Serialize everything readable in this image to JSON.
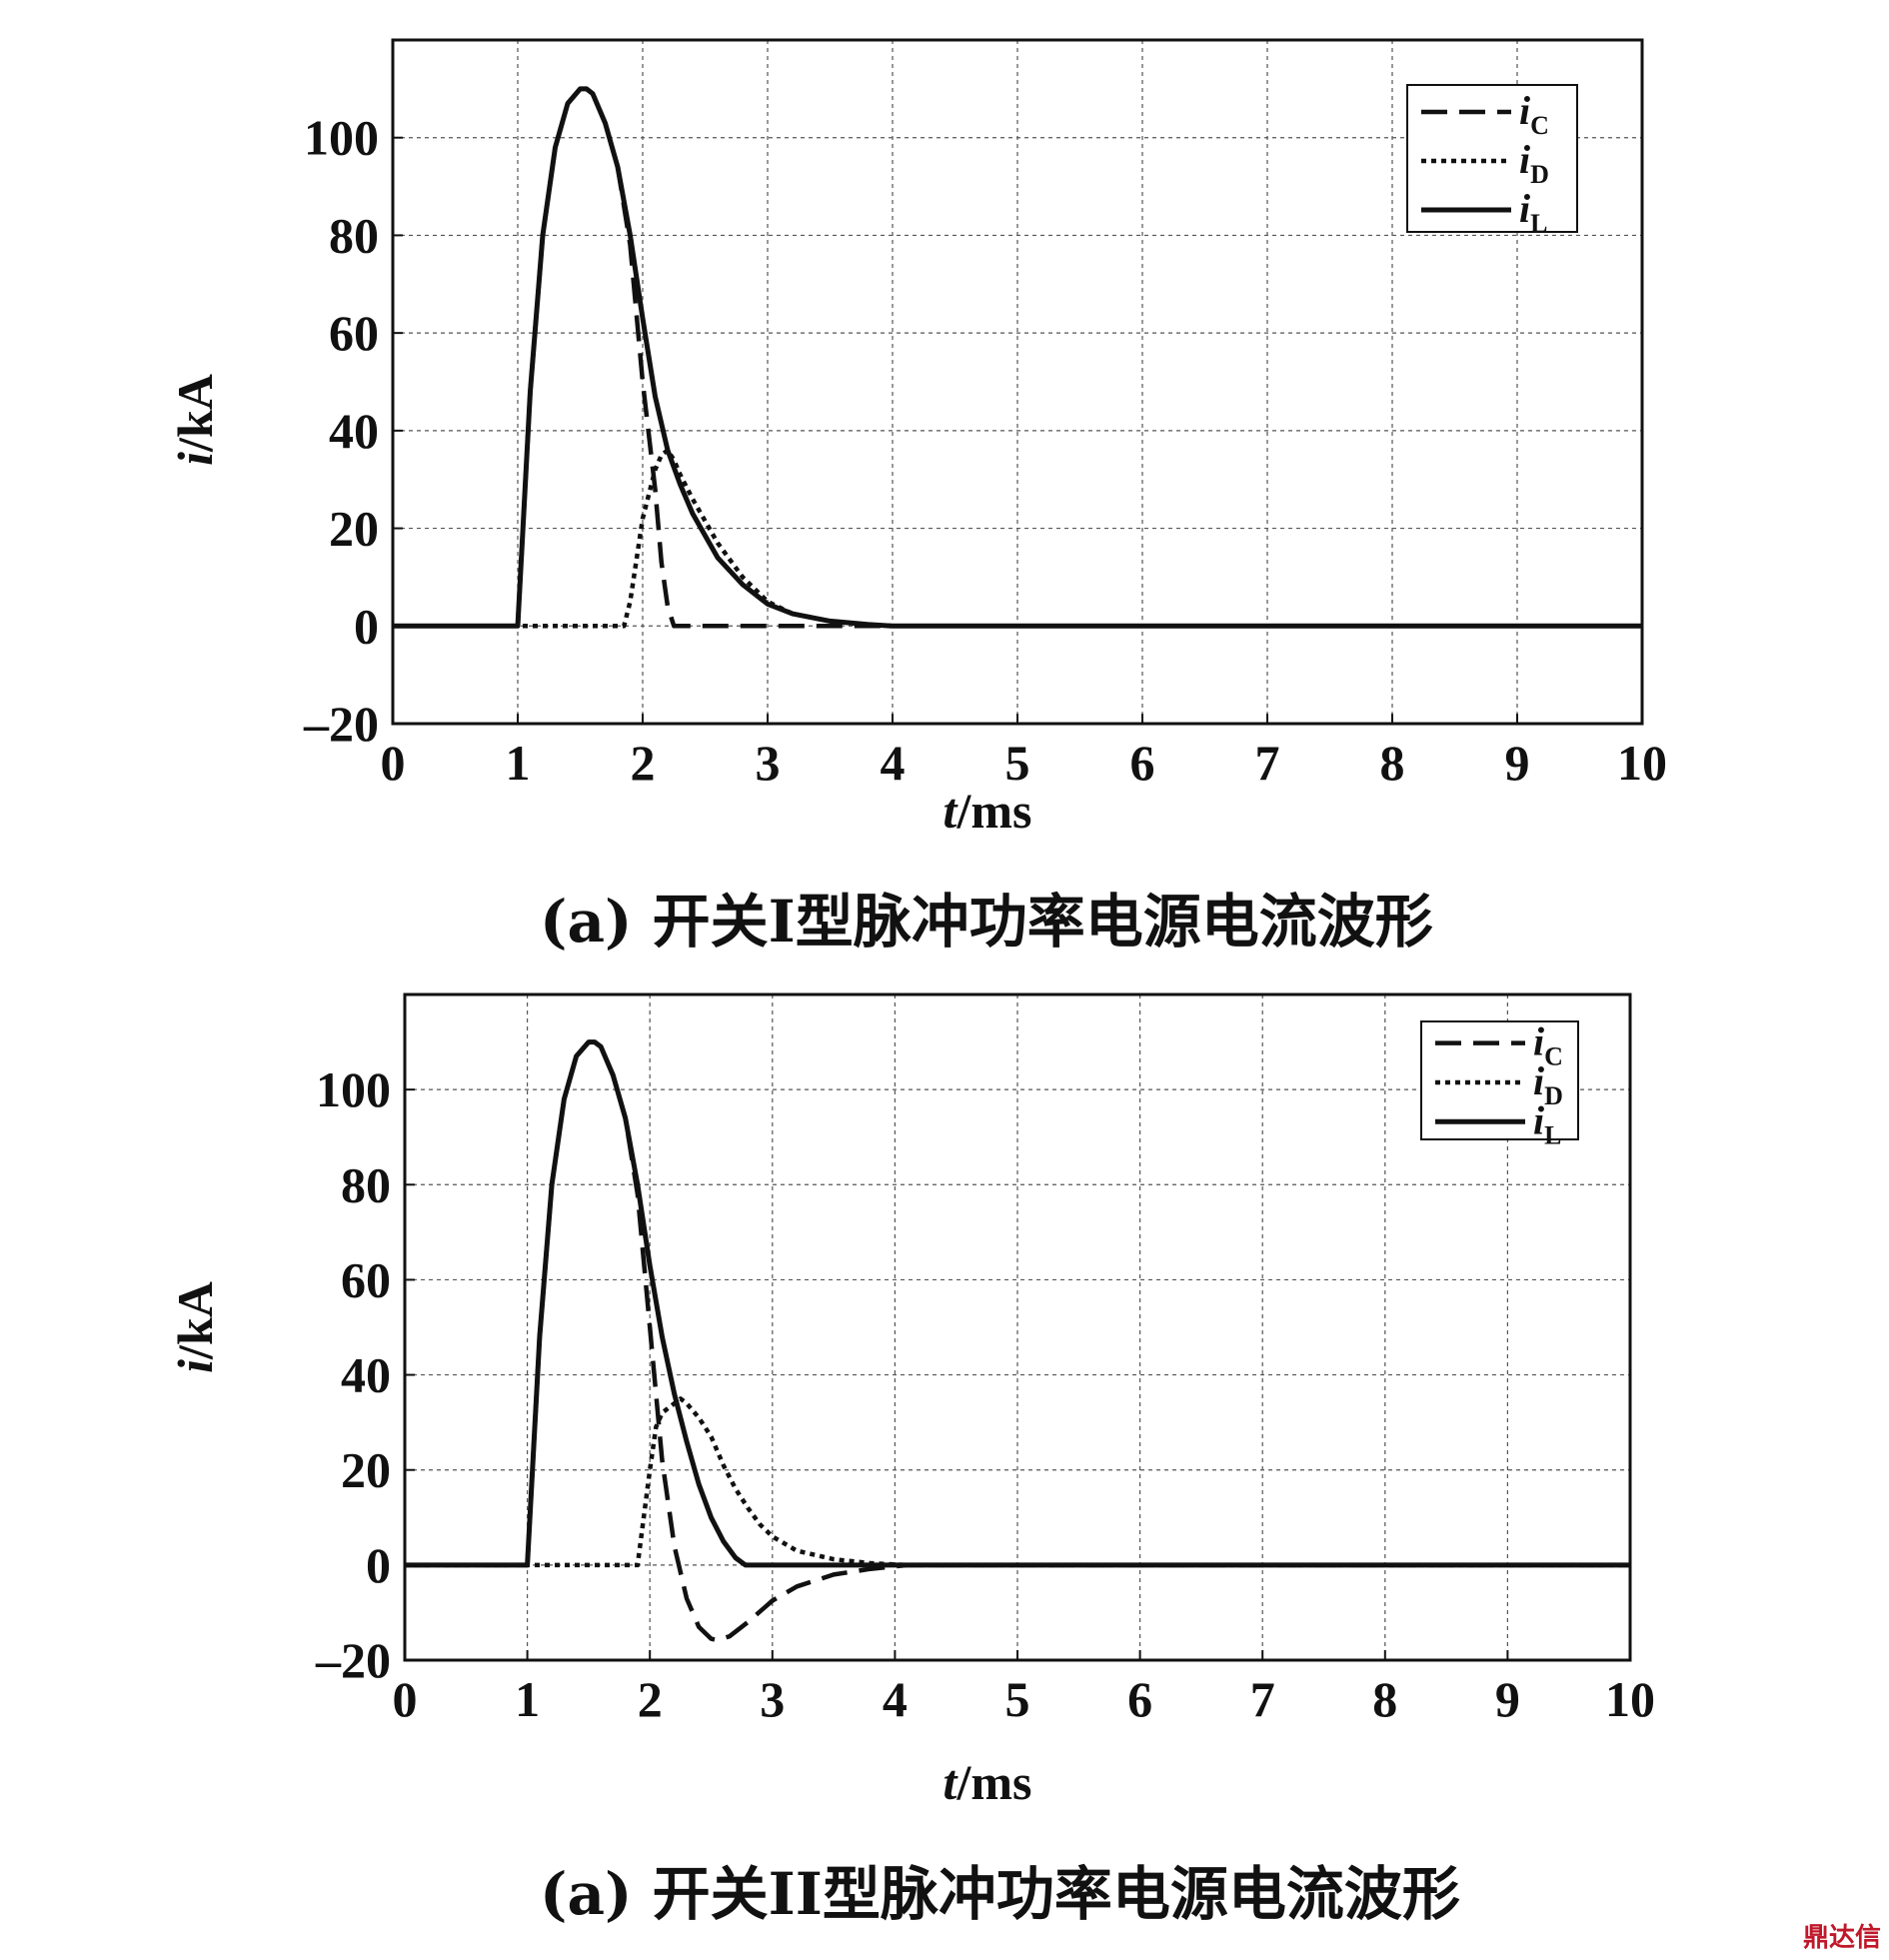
{
  "chart_data": [
    {
      "type": "line",
      "title": "",
      "caption": "(a) 开关I型脉冲功率电源电流波形",
      "xlabel_var": "t",
      "xlabel_unit": "/ms",
      "ylabel_var": "i",
      "ylabel_unit": "/kA",
      "xlim": [
        0,
        10
      ],
      "ylim": [
        -20,
        120
      ],
      "xticks": [
        "0",
        "1",
        "2",
        "3",
        "4",
        "5",
        "6",
        "7",
        "8",
        "9",
        "10"
      ],
      "yticks": [
        "–20",
        "0",
        "20",
        "40",
        "60",
        "80",
        "100"
      ],
      "ytick_values": [
        -20,
        0,
        20,
        40,
        60,
        80,
        100
      ],
      "grid": true,
      "legend_position": "top-right",
      "series": [
        {
          "name": "i",
          "sub": "C",
          "style": "dashed",
          "x": [
            0,
            1.0,
            1.1,
            1.2,
            1.3,
            1.4,
            1.5,
            1.55,
            1.6,
            1.7,
            1.8,
            1.9,
            2.0,
            2.1,
            2.15,
            2.2,
            2.25,
            10
          ],
          "y": [
            0,
            0,
            48,
            80,
            98,
            107,
            110,
            110,
            109,
            103,
            94,
            78,
            50,
            28,
            13,
            4,
            0,
            0
          ]
        },
        {
          "name": "i",
          "sub": "D",
          "style": "dotted",
          "x": [
            0,
            1.85,
            1.9,
            2.0,
            2.1,
            2.15,
            2.2,
            2.25,
            2.3,
            2.4,
            2.6,
            2.8,
            3.0,
            3.2,
            3.5,
            3.8,
            4.0,
            10
          ],
          "y": [
            0,
            0,
            5,
            22,
            32,
            35,
            36,
            34,
            31,
            26,
            17,
            10,
            5,
            2.5,
            1,
            0.3,
            0,
            0
          ]
        },
        {
          "name": "i",
          "sub": "L",
          "style": "solid",
          "x": [
            0,
            1.0,
            1.1,
            1.2,
            1.3,
            1.4,
            1.5,
            1.55,
            1.6,
            1.7,
            1.8,
            1.9,
            2.0,
            2.1,
            2.2,
            2.3,
            2.4,
            2.6,
            2.8,
            3.0,
            3.2,
            3.5,
            3.8,
            4.0,
            10
          ],
          "y": [
            0,
            0,
            48,
            80,
            98,
            107,
            110,
            110,
            109,
            103,
            94,
            80,
            63,
            47,
            36,
            29,
            23,
            14,
            8.5,
            4.5,
            2.5,
            1,
            0.3,
            0,
            0
          ]
        }
      ]
    },
    {
      "type": "line",
      "title": "",
      "caption": "(a) 开关II型脉冲功率电源电流波形",
      "xlabel_var": "t",
      "xlabel_unit": "/ms",
      "ylabel_var": "i",
      "ylabel_unit": "/kA",
      "xlim": [
        0,
        10
      ],
      "ylim": [
        -20,
        120
      ],
      "xticks": [
        "0",
        "1",
        "2",
        "3",
        "4",
        "5",
        "6",
        "7",
        "8",
        "9",
        "10"
      ],
      "yticks": [
        "–20",
        "0",
        "20",
        "40",
        "60",
        "80",
        "100"
      ],
      "ytick_values": [
        -20,
        0,
        20,
        40,
        60,
        80,
        100
      ],
      "grid": true,
      "legend_position": "top-right",
      "series": [
        {
          "name": "i",
          "sub": "C",
          "style": "dashed",
          "x": [
            0,
            1.0,
            1.1,
            1.2,
            1.3,
            1.4,
            1.5,
            1.55,
            1.6,
            1.7,
            1.8,
            1.9,
            2.0,
            2.1,
            2.2,
            2.3,
            2.4,
            2.5,
            2.55,
            2.65,
            2.8,
            3.0,
            3.2,
            3.5,
            3.8,
            4.1,
            10
          ],
          "y": [
            0,
            0,
            48,
            80,
            98,
            107,
            110,
            110,
            109,
            103,
            94,
            78,
            50,
            22,
            4,
            -7,
            -13,
            -15.5,
            -15.8,
            -15,
            -12,
            -7.5,
            -4.5,
            -2,
            -0.8,
            0,
            0
          ]
        },
        {
          "name": "i",
          "sub": "D",
          "style": "dotted",
          "x": [
            0,
            1.9,
            2.0,
            2.05,
            2.1,
            2.2,
            2.25,
            2.3,
            2.4,
            2.5,
            2.6,
            2.7,
            2.8,
            2.9,
            3.0,
            3.2,
            3.5,
            3.8,
            4.1,
            10
          ],
          "y": [
            0,
            0,
            20,
            29,
            32,
            34,
            35,
            34,
            31,
            27,
            21,
            16,
            12,
            8.5,
            6,
            3,
            1.2,
            0.4,
            0,
            0
          ]
        },
        {
          "name": "i",
          "sub": "L",
          "style": "solid",
          "x": [
            0,
            1.0,
            1.1,
            1.2,
            1.3,
            1.4,
            1.5,
            1.55,
            1.6,
            1.7,
            1.8,
            1.9,
            2.0,
            2.1,
            2.2,
            2.3,
            2.4,
            2.5,
            2.6,
            2.7,
            2.78,
            10
          ],
          "y": [
            0,
            0,
            48,
            80,
            98,
            107,
            110,
            110,
            109,
            103,
            94,
            80,
            63,
            48,
            36,
            26,
            17,
            10,
            5,
            1.5,
            0,
            0
          ]
        }
      ]
    }
  ],
  "watermark": "鼎达信"
}
